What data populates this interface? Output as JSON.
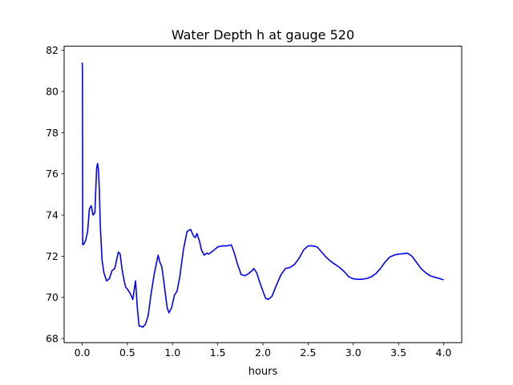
{
  "chart_data": {
    "type": "line",
    "title": "Water Depth h at gauge 520",
    "xlabel": "hours",
    "ylabel": "",
    "xlim": [
      -0.2,
      4.2
    ],
    "ylim": [
      67.8,
      82.2
    ],
    "xticks": [
      0.0,
      0.5,
      1.0,
      1.5,
      2.0,
      2.5,
      3.0,
      3.5,
      4.0
    ],
    "xtick_labels": [
      "0.0",
      "0.5",
      "1.0",
      "1.5",
      "2.0",
      "2.5",
      "3.0",
      "3.5",
      "4.0"
    ],
    "yticks": [
      68,
      70,
      72,
      74,
      76,
      78,
      80,
      82
    ],
    "ytick_labels": [
      "68",
      "70",
      "72",
      "74",
      "76",
      "78",
      "80",
      "82"
    ],
    "grid": false,
    "series": [
      {
        "color": "#0000ff",
        "x": [
          0.0,
          0.003,
          0.006,
          0.008,
          0.01,
          0.02,
          0.04,
          0.06,
          0.08,
          0.1,
          0.12,
          0.14,
          0.16,
          0.17,
          0.18,
          0.19,
          0.2,
          0.22,
          0.24,
          0.27,
          0.3,
          0.33,
          0.36,
          0.4,
          0.42,
          0.44,
          0.46,
          0.48,
          0.5,
          0.53,
          0.56,
          0.59,
          0.6,
          0.61,
          0.63,
          0.65,
          0.67,
          0.7,
          0.73,
          0.76,
          0.8,
          0.84,
          0.86,
          0.88,
          0.9,
          0.92,
          0.94,
          0.96,
          0.99,
          1.02,
          1.05,
          1.08,
          1.12,
          1.16,
          1.2,
          1.23,
          1.25,
          1.27,
          1.3,
          1.32,
          1.35,
          1.38,
          1.4,
          1.43,
          1.46,
          1.5,
          1.55,
          1.6,
          1.65,
          1.68,
          1.72,
          1.76,
          1.8,
          1.84,
          1.88,
          1.9,
          1.93,
          1.96,
          2.0,
          2.03,
          2.06,
          2.1,
          2.15,
          2.2,
          2.25,
          2.3,
          2.35,
          2.4,
          2.45,
          2.5,
          2.55,
          2.6,
          2.65,
          2.7,
          2.75,
          2.8,
          2.85,
          2.9,
          2.95,
          3.0,
          3.05,
          3.1,
          3.15,
          3.2,
          3.25,
          3.3,
          3.35,
          3.4,
          3.45,
          3.5,
          3.55,
          3.6,
          3.65,
          3.7,
          3.75,
          3.8,
          3.85,
          3.9,
          3.95,
          4.0
        ],
        "y": [
          81.4,
          81.1,
          72.6,
          72.55,
          72.55,
          72.6,
          72.8,
          73.2,
          74.3,
          74.45,
          74.0,
          74.1,
          76.3,
          76.5,
          76.2,
          75.2,
          73.5,
          71.8,
          71.2,
          70.8,
          70.9,
          71.3,
          71.4,
          72.2,
          72.1,
          71.4,
          70.9,
          70.5,
          70.4,
          70.2,
          69.9,
          70.8,
          70.2,
          69.5,
          68.6,
          68.6,
          68.55,
          68.7,
          69.1,
          70.1,
          71.2,
          72.05,
          71.7,
          71.5,
          70.9,
          70.2,
          69.5,
          69.25,
          69.5,
          70.1,
          70.3,
          71.0,
          72.3,
          73.2,
          73.3,
          73.0,
          72.9,
          73.1,
          72.7,
          72.3,
          72.05,
          72.15,
          72.1,
          72.2,
          72.3,
          72.45,
          72.5,
          72.5,
          72.55,
          72.2,
          71.6,
          71.1,
          71.05,
          71.15,
          71.3,
          71.4,
          71.2,
          70.8,
          70.3,
          69.95,
          69.9,
          70.05,
          70.6,
          71.1,
          71.4,
          71.45,
          71.6,
          71.9,
          72.3,
          72.5,
          72.5,
          72.45,
          72.2,
          71.95,
          71.75,
          71.6,
          71.45,
          71.25,
          71.0,
          70.9,
          70.88,
          70.88,
          70.92,
          71.0,
          71.15,
          71.4,
          71.7,
          71.95,
          72.05,
          72.1,
          72.12,
          72.15,
          72.0,
          71.7,
          71.4,
          71.2,
          71.05,
          70.98,
          70.92,
          70.85
        ]
      }
    ]
  }
}
